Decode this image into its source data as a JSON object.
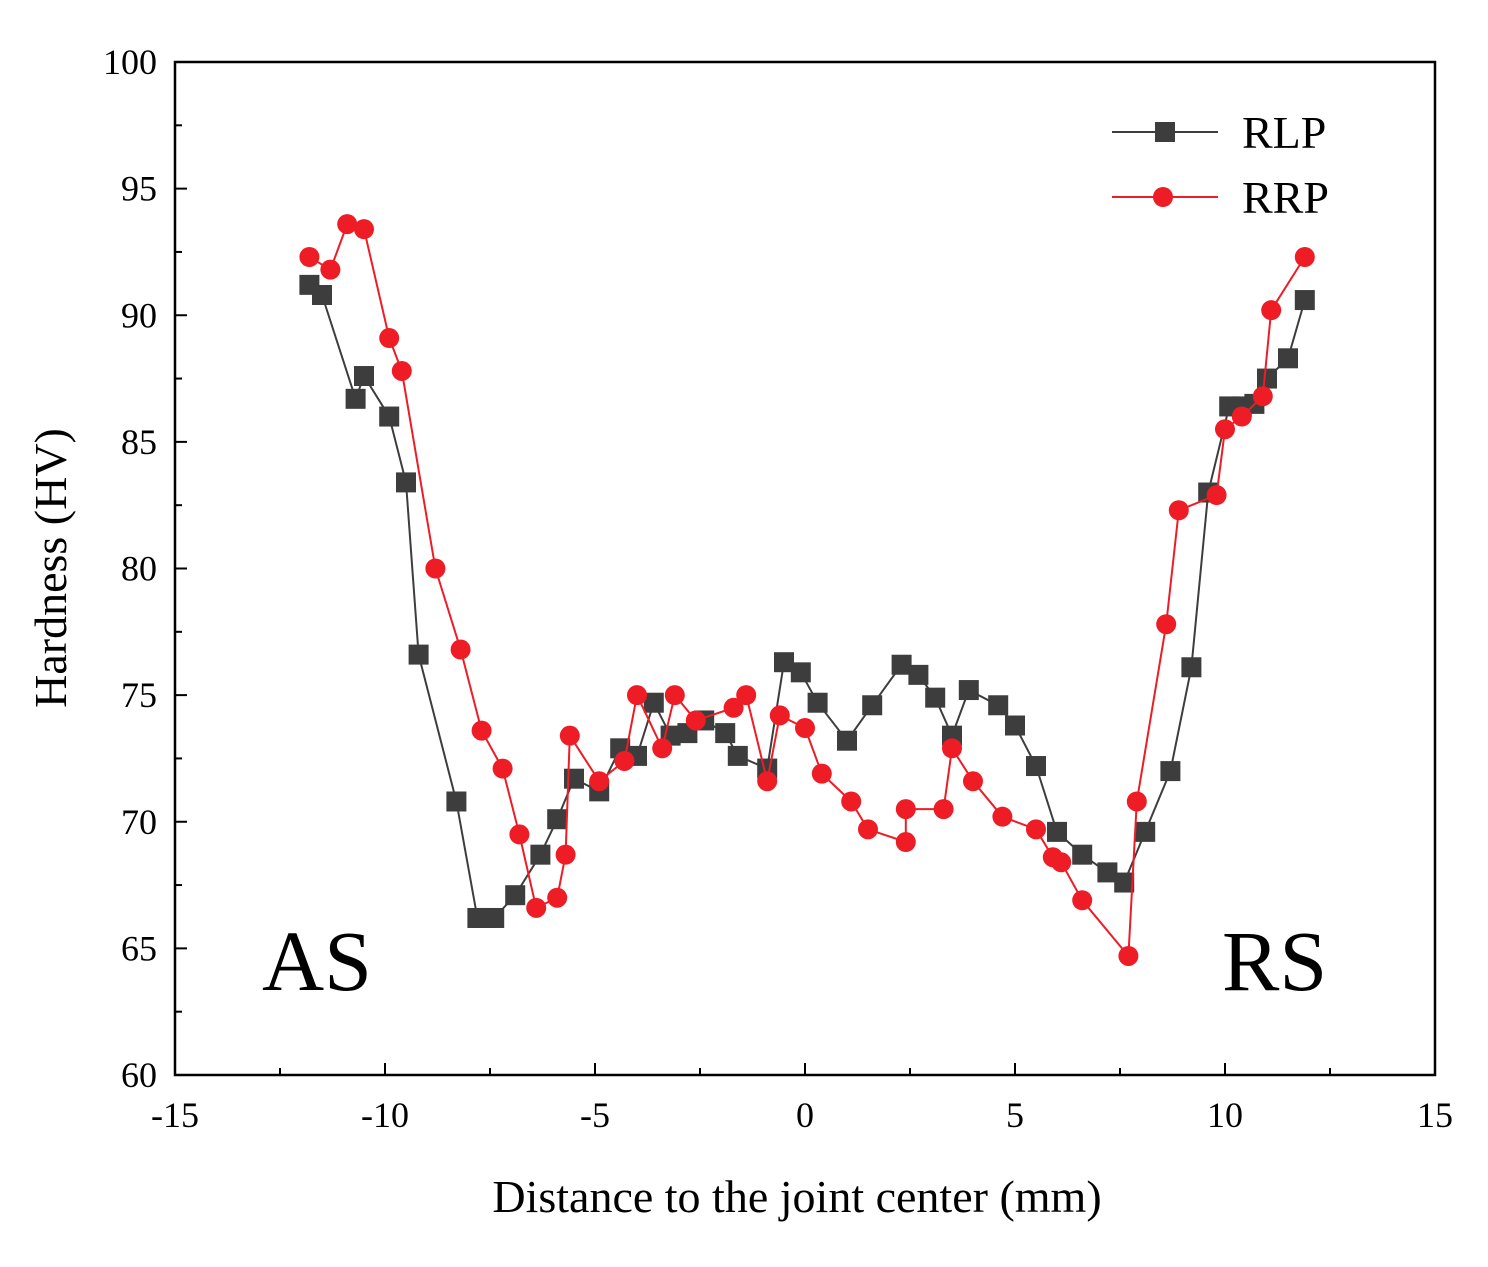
{
  "chart_data": {
    "type": "line",
    "title": "",
    "xlabel": "Distance to the joint center (mm)",
    "ylabel": "Hardness (HV)",
    "xlim": [
      -15,
      15
    ],
    "ylim": [
      60,
      100
    ],
    "xticks": [
      -15,
      -10,
      -5,
      0,
      5,
      10,
      15
    ],
    "yticks": [
      60,
      65,
      70,
      75,
      80,
      85,
      90,
      95,
      100
    ],
    "xtick_labels": [
      "-15",
      "-10",
      "-5",
      "0",
      "5",
      "10",
      "15"
    ],
    "ytick_labels": [
      "60",
      "65",
      "70",
      "75",
      "80",
      "85",
      "90",
      "95",
      "100"
    ],
    "grid": false,
    "legend_position": "top-right",
    "annotations": {
      "left": "AS",
      "right": "RS"
    },
    "series": [
      {
        "name": "RLP",
        "color": "#3d3d3d",
        "marker": "square",
        "x": [
          -11.8,
          -11.5,
          -10.7,
          -10.5,
          -9.9,
          -9.5,
          -9.2,
          -8.3,
          -7.8,
          -7.6,
          -7.4,
          -6.9,
          -6.3,
          -5.9,
          -5.5,
          -4.9,
          -4.4,
          -4.0,
          -3.6,
          -3.2,
          -2.8,
          -2.4,
          -1.9,
          -1.6,
          -0.9,
          -0.5,
          -0.1,
          0.3,
          1.0,
          1.6,
          2.3,
          2.7,
          3.1,
          3.5,
          3.9,
          4.6,
          5.0,
          5.5,
          6.0,
          6.6,
          7.2,
          7.6,
          8.1,
          8.7,
          9.2,
          9.6,
          10.1,
          10.4,
          10.7,
          11.0,
          11.5,
          11.9
        ],
        "y": [
          91.2,
          90.8,
          86.7,
          87.6,
          86.0,
          83.4,
          76.6,
          70.8,
          66.2,
          66.2,
          66.2,
          67.1,
          68.7,
          70.1,
          71.7,
          71.2,
          72.9,
          72.6,
          74.7,
          73.4,
          73.5,
          74.0,
          73.5,
          72.6,
          72.1,
          76.3,
          75.9,
          74.7,
          73.2,
          74.6,
          76.2,
          75.8,
          74.9,
          73.4,
          75.2,
          74.6,
          73.8,
          72.2,
          69.6,
          68.7,
          68.0,
          67.6,
          69.6,
          72.0,
          76.1,
          83.0,
          86.4,
          86.4,
          86.5,
          87.5,
          88.3,
          90.6
        ]
      },
      {
        "name": "RRP",
        "color": "#ee1c25",
        "marker": "circle",
        "x": [
          -11.8,
          -11.3,
          -10.9,
          -10.5,
          -9.9,
          -9.6,
          -8.8,
          -8.2,
          -7.7,
          -7.2,
          -6.8,
          -6.4,
          -5.9,
          -5.7,
          -5.6,
          -4.9,
          -4.3,
          -4.0,
          -3.4,
          -3.1,
          -2.6,
          -1.7,
          -1.4,
          -0.9,
          -0.6,
          0.0,
          0.4,
          1.1,
          1.5,
          2.4,
          2.4,
          3.3,
          3.5,
          4.0,
          4.7,
          5.5,
          5.9,
          6.1,
          6.6,
          7.7,
          7.9,
          8.6,
          8.9,
          9.8,
          10.0,
          10.4,
          10.9,
          11.1,
          11.9
        ],
        "y": [
          92.3,
          91.8,
          93.6,
          93.4,
          89.1,
          87.8,
          80.0,
          76.8,
          73.6,
          72.1,
          69.5,
          66.6,
          67.0,
          68.7,
          73.4,
          71.6,
          72.4,
          75.0,
          72.9,
          75.0,
          74.0,
          74.5,
          75.0,
          71.6,
          74.2,
          73.7,
          71.9,
          70.8,
          69.7,
          69.2,
          70.5,
          70.5,
          72.9,
          71.6,
          70.2,
          69.7,
          68.6,
          68.4,
          66.9,
          64.7,
          70.8,
          77.8,
          82.3,
          82.9,
          85.5,
          86.0,
          86.8,
          90.2,
          92.3
        ]
      }
    ]
  }
}
